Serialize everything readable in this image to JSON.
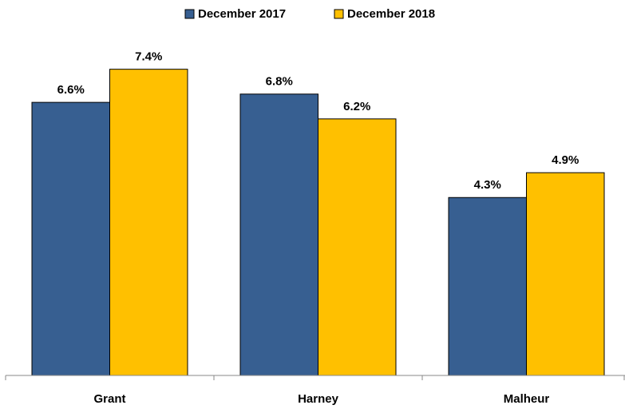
{
  "chart_data": {
    "type": "bar",
    "categories": [
      "Grant",
      "Harney",
      "Malheur"
    ],
    "series": [
      {
        "name": "December 2017",
        "color": "#375f91",
        "values": [
          6.6,
          6.8,
          4.3
        ],
        "value_labels": [
          "6.6%",
          "6.8%",
          "4.3%"
        ]
      },
      {
        "name": "December 2018",
        "color": "#ffc000",
        "values": [
          7.4,
          6.2,
          4.9
        ],
        "value_labels": [
          "7.4%",
          "6.2%",
          "4.9%"
        ]
      }
    ],
    "ylim": [
      0,
      8
    ],
    "grid": false,
    "legend": "top"
  }
}
